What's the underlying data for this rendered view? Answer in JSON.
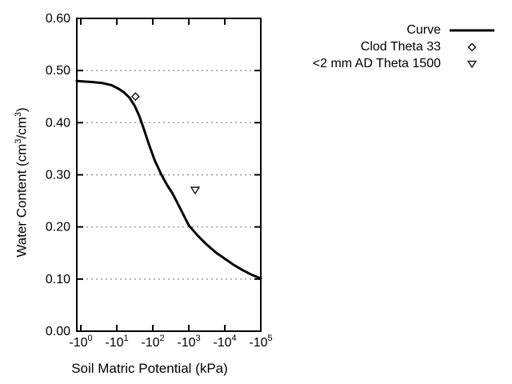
{
  "chart_data": {
    "type": "line",
    "title": "",
    "xlabel": "Soil Matric Potential (kPa)",
    "ylabel": {
      "prefix": "Water Content (cm",
      "sup1": "3",
      "mid": "/cm",
      "sup2": "3",
      "suffix": ")"
    },
    "x_axis": {
      "scale": "negative-log10",
      "unit": "kPa",
      "tick_labels": [
        {
          "base": "-10",
          "exp": "0",
          "decade": 0
        },
        {
          "base": "-10",
          "exp": "1",
          "decade": 1
        },
        {
          "base": "-10",
          "exp": "2",
          "decade": 2
        },
        {
          "base": "-10",
          "exp": "3",
          "decade": 3
        },
        {
          "base": "-10",
          "exp": "4",
          "decade": 4
        },
        {
          "base": "-10",
          "exp": "5",
          "decade": 5
        }
      ],
      "range_decades": [
        -0.11,
        5
      ]
    },
    "y_axis": {
      "tick_labels": [
        "0.00",
        "0.10",
        "0.20",
        "0.30",
        "0.40",
        "0.50",
        "0.60"
      ],
      "tick_values": [
        0.0,
        0.1,
        0.2,
        0.3,
        0.4,
        0.5,
        0.6
      ],
      "min": 0.0,
      "max": 0.6,
      "gridline_values": [
        0.1,
        0.2,
        0.3,
        0.4,
        0.5
      ]
    },
    "grid": "horizontal-dotted",
    "legend_position": "top-right-outside",
    "series": [
      {
        "name": "Curve",
        "kind": "line",
        "marker": "solid-line",
        "points_decade_theta": [
          [
            -0.11,
            0.48
          ],
          [
            0.3,
            0.478
          ],
          [
            0.6,
            0.476
          ],
          [
            0.85,
            0.472
          ],
          [
            1.05,
            0.465
          ],
          [
            1.2,
            0.458
          ],
          [
            1.35,
            0.448
          ],
          [
            1.5,
            0.432
          ],
          [
            1.63,
            0.412
          ],
          [
            1.75,
            0.388
          ],
          [
            1.9,
            0.357
          ],
          [
            2.05,
            0.328
          ],
          [
            2.24,
            0.3
          ],
          [
            2.4,
            0.28
          ],
          [
            2.55,
            0.264
          ],
          [
            2.75,
            0.237
          ],
          [
            3.0,
            0.203
          ],
          [
            3.25,
            0.183
          ],
          [
            3.5,
            0.166
          ],
          [
            3.75,
            0.151
          ],
          [
            4.0,
            0.139
          ],
          [
            4.25,
            0.127
          ],
          [
            4.5,
            0.117
          ],
          [
            4.75,
            0.108
          ],
          [
            4.9,
            0.104
          ],
          [
            5.0,
            0.101
          ]
        ]
      },
      {
        "name": "Clod Theta 33",
        "kind": "scatter",
        "marker": "diamond-open",
        "points_kpa_theta": [
          [
            -33,
            0.45
          ]
        ]
      },
      {
        "name": "<2 mm AD Theta 1500",
        "kind": "scatter",
        "marker": "triangle-down-open",
        "points_kpa_theta": [
          [
            -1500,
            0.27
          ]
        ]
      }
    ],
    "colors": {
      "line": "#000000",
      "marker_stroke": "#000000",
      "grid": "#999999",
      "axis": "#000000",
      "text": "#000000",
      "background": "#ffffff"
    }
  }
}
